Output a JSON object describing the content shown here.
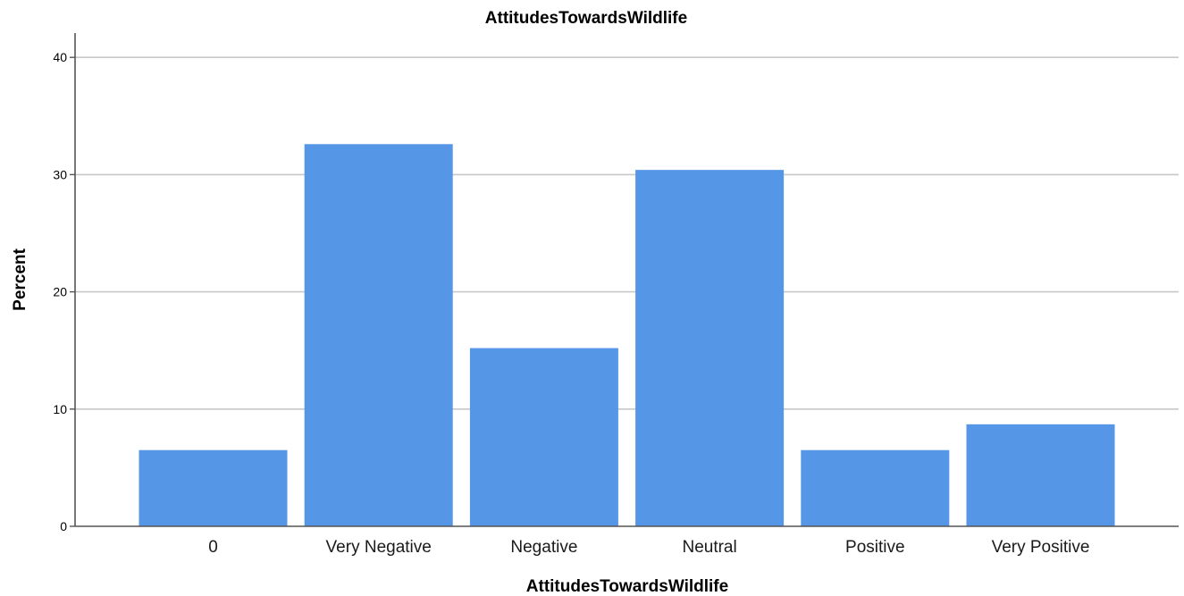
{
  "chart_data": {
    "type": "bar",
    "title": "AttitudesTowardsWildlife",
    "xlabel": "AttitudesTowardsWildlife",
    "ylabel": "Percent",
    "categories": [
      "0",
      "Very Negative",
      "Negative",
      "Neutral",
      "Positive",
      "Very Positive"
    ],
    "values": [
      6.5,
      32.6,
      15.2,
      30.4,
      6.5,
      8.7
    ],
    "ylim": [
      0,
      42
    ],
    "yticks": [
      0,
      10,
      20,
      30,
      40
    ],
    "grid": true,
    "bar_color": "#5596e6"
  }
}
